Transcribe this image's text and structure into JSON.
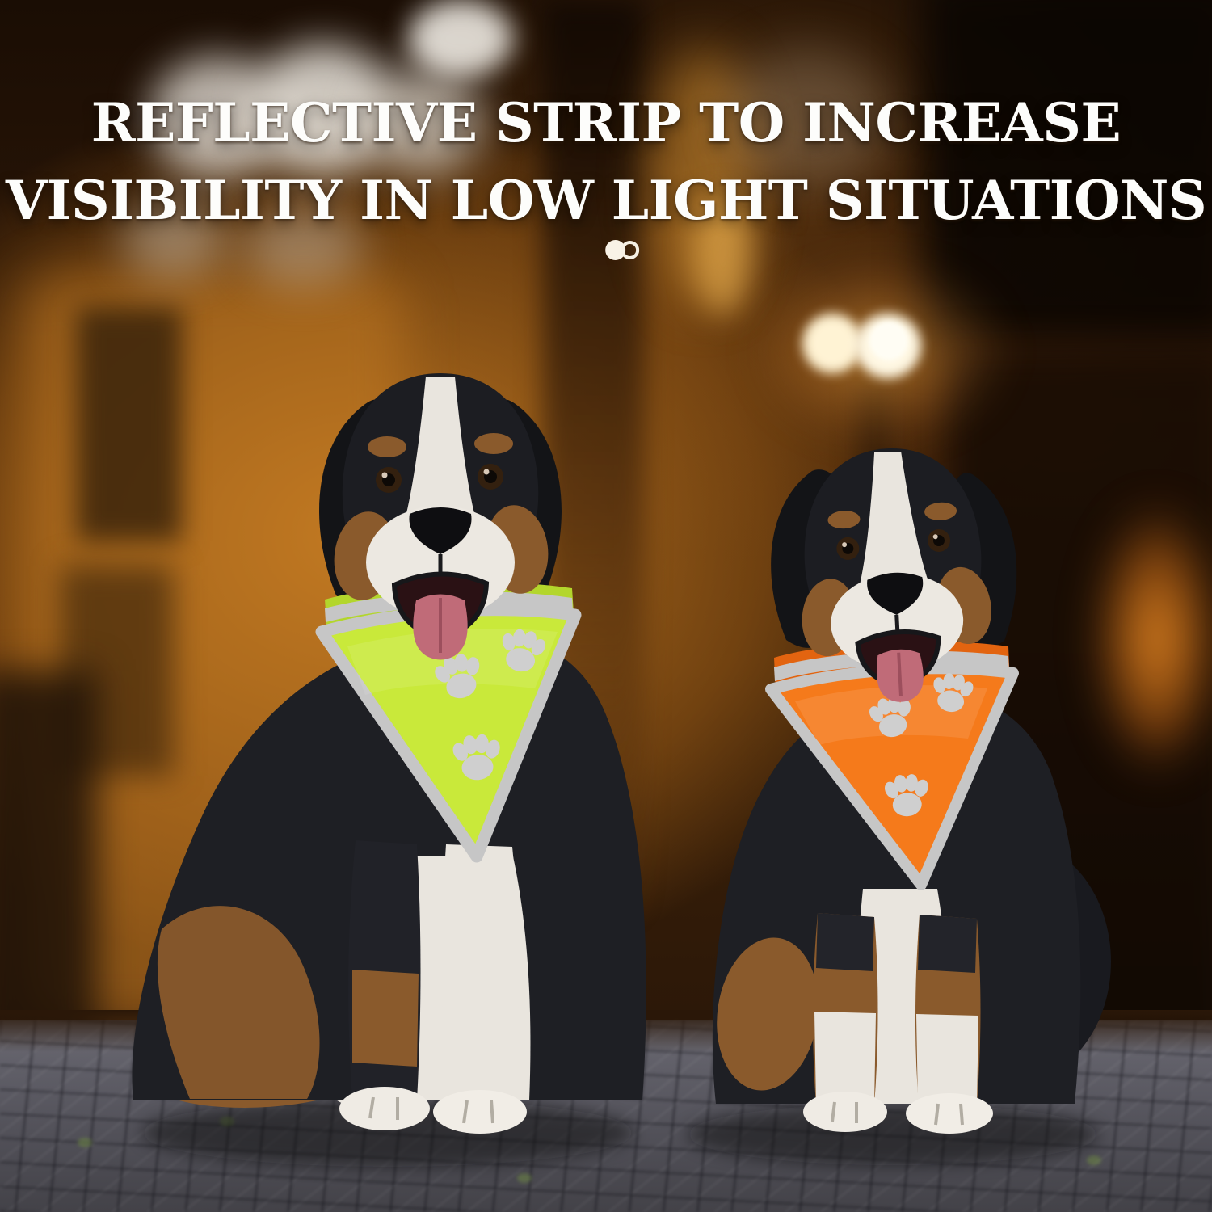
{
  "headline": {
    "line1": "REFLECTIVE STRIP TO INCREASE",
    "line2": "VISIBILITY IN LOW LIGHT SITUATIONS",
    "text_color": "#fdfdfb"
  },
  "carousel": {
    "dots": [
      {
        "style": "filled"
      },
      {
        "style": "outline"
      }
    ]
  },
  "scene": {
    "colors": {
      "left_bandana": "#c9e93a",
      "left_bandana_deep": "#b3d62c",
      "right_bandana": "#f57a1b",
      "right_bandana_deep": "#e26410",
      "reflective_silver": "#c6c6c6",
      "paw_print_silver": "#cfcfcf",
      "night_glow_orange": "#c27b22",
      "streetlight": "#fff6dc",
      "pavement_gray": "#565560",
      "dog_coat_black": "#1e1f24",
      "dog_coat_tan": "#8a5a2c",
      "dog_coat_white": "#e9e5de",
      "tongue_pink": "#c06b78"
    }
  }
}
